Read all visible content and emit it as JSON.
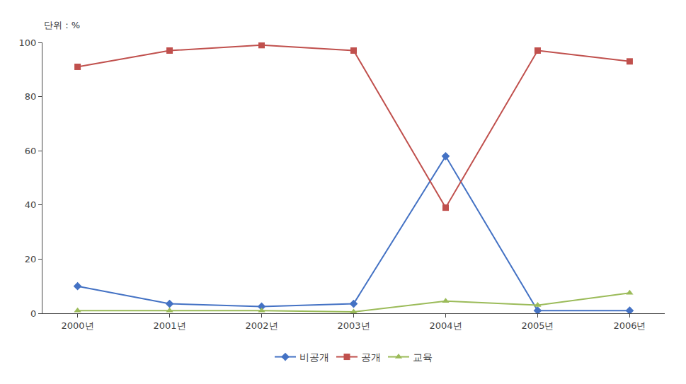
{
  "chart_data": {
    "type": "line",
    "categories": [
      "2000년",
      "2001년",
      "2002년",
      "2003년",
      "2004년",
      "2005년",
      "2006년"
    ],
    "series": [
      {
        "name": "비공개",
        "color": "#4472C4",
        "marker": "diamond",
        "line_style": "solid",
        "values": [
          10,
          3.5,
          2.5,
          3.5,
          58,
          1,
          1
        ]
      },
      {
        "name": "공개",
        "color": "#C0504D",
        "marker": "square",
        "line_style": "solid",
        "values": [
          91,
          97,
          99,
          97,
          39,
          97,
          93
        ]
      },
      {
        "name": "교육",
        "color": "#9BBB59",
        "marker": "triangle-up",
        "line_style": "solid",
        "values": [
          1,
          1,
          1,
          0.5,
          4.5,
          3,
          7.5
        ]
      }
    ],
    "annotations": [
      "단위 : %"
    ],
    "ylim": [
      0,
      100
    ],
    "yticks": [
      0,
      20,
      40,
      60,
      80,
      100
    ],
    "grid": false,
    "legend": "bottom"
  }
}
